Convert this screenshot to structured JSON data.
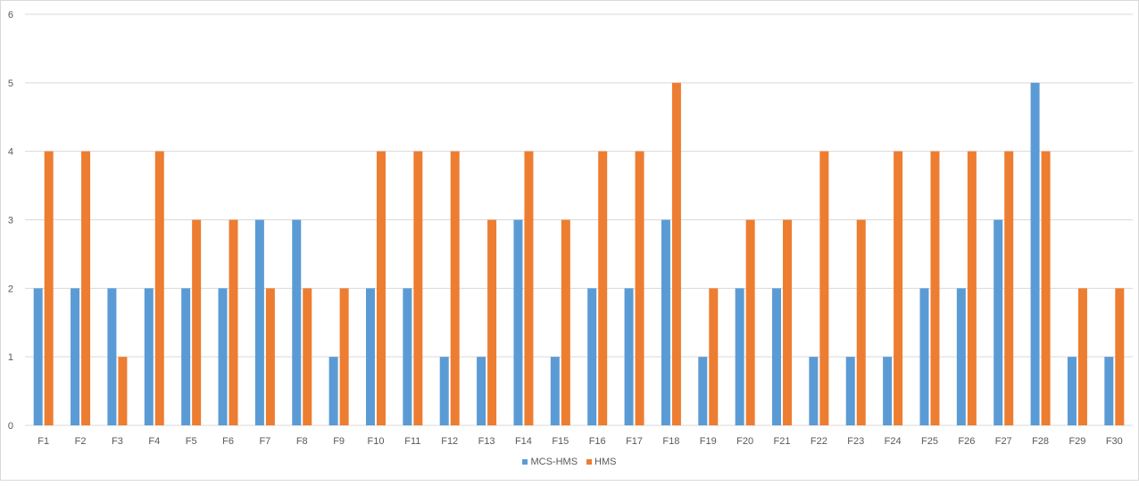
{
  "chart_data": {
    "type": "bar",
    "categories": [
      "F1",
      "F2",
      "F3",
      "F4",
      "F5",
      "F6",
      "F7",
      "F8",
      "F9",
      "F10",
      "F11",
      "F12",
      "F13",
      "F14",
      "F15",
      "F16",
      "F17",
      "F18",
      "F19",
      "F20",
      "F21",
      "F22",
      "F23",
      "F24",
      "F25",
      "F26",
      "F27",
      "F28",
      "F29",
      "F30"
    ],
    "series": [
      {
        "name": "MCS-HMS",
        "color": "#5b9bd5",
        "values": [
          2,
          2,
          2,
          2,
          2,
          2,
          3,
          3,
          1,
          2,
          2,
          1,
          1,
          3,
          1,
          2,
          2,
          3,
          1,
          2,
          2,
          1,
          1,
          1,
          2,
          2,
          3,
          5,
          1,
          1
        ]
      },
      {
        "name": "HMS",
        "color": "#ed7d31",
        "values": [
          4,
          4,
          1,
          4,
          3,
          3,
          2,
          2,
          2,
          4,
          4,
          4,
          3,
          4,
          3,
          4,
          4,
          5,
          2,
          3,
          3,
          4,
          3,
          4,
          4,
          4,
          4,
          4,
          2,
          2
        ]
      }
    ],
    "ylim": [
      0,
      6
    ],
    "yticks": [
      "0",
      "1",
      "2",
      "3",
      "4",
      "5",
      "6"
    ],
    "grid": true,
    "legend_position": "bottom",
    "title": "",
    "xlabel": "",
    "ylabel": ""
  }
}
